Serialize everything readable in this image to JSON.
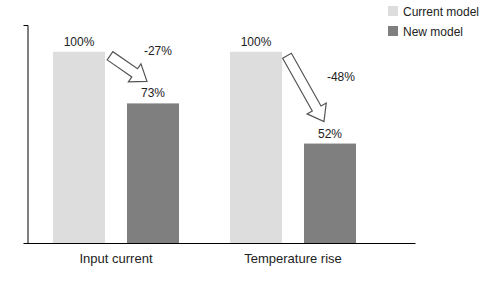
{
  "chart_data": {
    "type": "bar",
    "categories": [
      "Input current",
      "Temperature rise"
    ],
    "series": [
      {
        "name": "Current model",
        "color": "#dddddd",
        "values": [
          100,
          100
        ],
        "value_labels": [
          "100%",
          "100%"
        ]
      },
      {
        "name": "New model",
        "color": "#7f7f7f",
        "values": [
          73,
          52
        ],
        "value_labels": [
          "73%",
          "52%"
        ]
      }
    ],
    "ylim": [
      0,
      114
    ],
    "tick_labels": "x",
    "data_labels": true,
    "legend": "upper right",
    "annotations": [
      "-27%",
      "-48%"
    ]
  }
}
